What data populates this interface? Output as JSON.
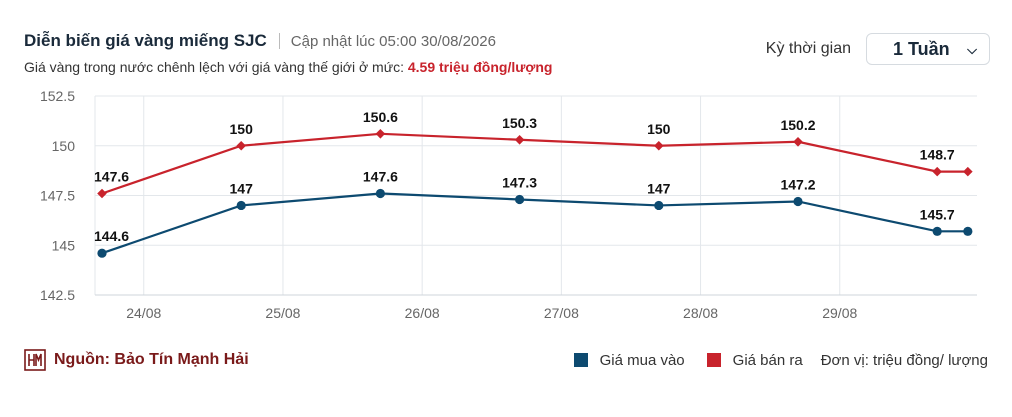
{
  "header": {
    "title": "Diễn biến giá vàng miếng SJC",
    "updated": "Cập nhật lúc 05:00 30/08/2026",
    "subtitle_prefix": "Giá vàng trong nước chênh lệch với giá vàng thế giới ở mức:",
    "subtitle_value": "4.59 triệu đồng/lượng"
  },
  "period": {
    "label": "Kỳ thời gian",
    "selected": "1 Tuần"
  },
  "footer": {
    "source": "Nguồn: Bảo Tín Mạnh Hải",
    "unit": "Đơn vị: triệu đồng/ lượng"
  },
  "colors": {
    "buy": "#0d4a70",
    "sell": "#c8232c",
    "grid": "#e3e7eb",
    "axis_text": "#666666"
  },
  "chart_data": {
    "type": "line",
    "x": [
      0,
      1,
      2,
      3,
      4,
      5,
      6,
      6.22
    ],
    "xticks": [
      {
        "pos": 0.3,
        "label": "24/08"
      },
      {
        "pos": 1.3,
        "label": "25/08"
      },
      {
        "pos": 2.3,
        "label": "26/08"
      },
      {
        "pos": 3.3,
        "label": "27/08"
      },
      {
        "pos": 4.3,
        "label": "28/08"
      },
      {
        "pos": 5.3,
        "label": "29/08"
      }
    ],
    "ylim": [
      142.5,
      152.5
    ],
    "yticks": [
      142.5,
      145,
      147.5,
      150,
      152.5
    ],
    "ytick_labels": [
      "142.5",
      "145",
      "147.5",
      "150",
      "152.5"
    ],
    "grid": true,
    "legend_position": "bottom-right",
    "series": [
      {
        "name": "Giá mua vào",
        "key": "buy",
        "values": [
          144.6,
          147,
          147.6,
          147.3,
          147,
          147.2,
          145.7,
          145.7
        ],
        "labels": [
          "144.6",
          "147",
          "147.6",
          "147.3",
          "147",
          "147.2",
          "145.7",
          ""
        ]
      },
      {
        "name": "Giá bán ra",
        "key": "sell",
        "values": [
          147.6,
          150,
          150.6,
          150.3,
          150,
          150.2,
          148.7,
          148.7
        ],
        "labels": [
          "147.6",
          "150",
          "150.6",
          "150.3",
          "150",
          "150.2",
          "148.7",
          ""
        ]
      }
    ]
  }
}
